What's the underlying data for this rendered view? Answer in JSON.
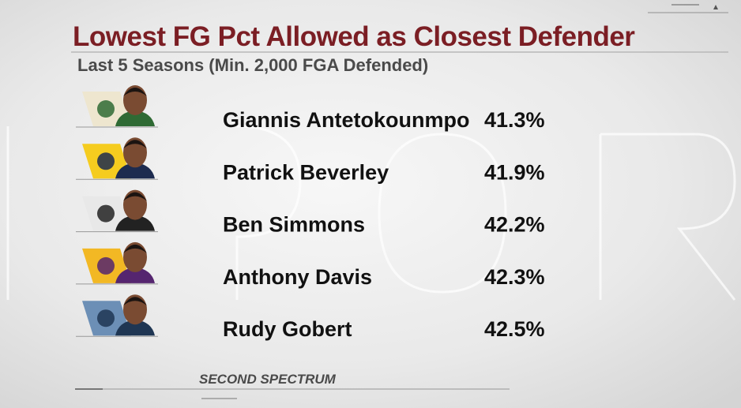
{
  "header": {
    "title": "Lowest FG Pct Allowed as Closest Defender",
    "subtitle": "Last 5 Seasons (Min. 2,000 FGA Defended)"
  },
  "rows": [
    {
      "name": "Giannis Antetokounmpo",
      "value": "41.3%"
    },
    {
      "name": "Patrick Beverley",
      "value": "41.9%"
    },
    {
      "name": "Ben Simmons",
      "value": "42.2%"
    },
    {
      "name": "Anthony Davis",
      "value": "42.3%"
    },
    {
      "name": "Rudy Gobert",
      "value": "42.5%"
    }
  ],
  "source": "SECOND SPECTRUM"
}
